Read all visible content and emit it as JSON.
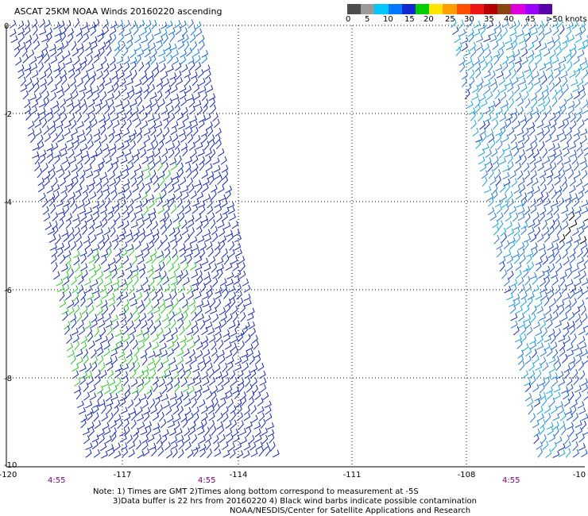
{
  "header": {
    "title": "ASCAT 25KM NOAA Winds 20160220 ascending"
  },
  "colorbar": {
    "colors": [
      "#4d4d4d",
      "#9a9a9a",
      "#00c8ff",
      "#0078ff",
      "#1428d2",
      "#00cd00",
      "#ffe600",
      "#ff9f00",
      "#ff5000",
      "#f01414",
      "#b40000",
      "#8b4513",
      "#dc00dc",
      "#9b00ff",
      "#5a00aa"
    ],
    "labels": [
      "0",
      "5",
      "10",
      "15",
      "20",
      "25",
      "30",
      "35",
      "40",
      "45",
      ">50 knots"
    ]
  },
  "map": {
    "x_ticks": [
      "-120",
      "-117",
      "-114",
      "-111",
      "-108",
      "-10"
    ],
    "y_ticks": [
      "0",
      "-2",
      "-4",
      "-6",
      "-8",
      "-10"
    ],
    "times": [
      "4:55",
      "4:55",
      "4:55"
    ]
  },
  "notes": {
    "line1": "Note: 1) Times are GMT 2)Times along bottom correspond to measurement at -5S",
    "line2": "3)Data buffer is 22 hrs from 20160220 4) Black wind barbs indicate possible contamination",
    "line3": "NOAA/NESDIS/Center for Satellite Applications and Research"
  }
}
